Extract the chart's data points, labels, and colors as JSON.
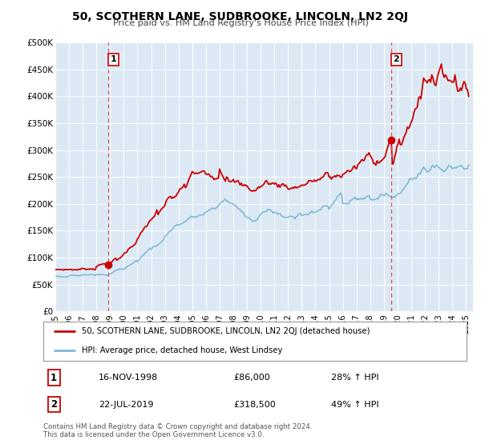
{
  "title": "50, SCOTHERN LANE, SUDBROOKE, LINCOLN, LN2 2QJ",
  "subtitle": "Price paid vs. HM Land Registry's House Price Index (HPI)",
  "ylim": [
    0,
    500000
  ],
  "xlim_start": 1995.0,
  "xlim_end": 2025.5,
  "plot_bg_color": "#dce9f5",
  "red_line_color": "#cc0000",
  "blue_line_color": "#7ab8d4",
  "marker1_date": 1998.88,
  "marker1_value": 86000,
  "marker2_date": 2019.54,
  "marker2_value": 318500,
  "vline_color": "#e05050",
  "legend_label_red": "50, SCOTHERN LANE, SUDBROOKE, LINCOLN, LN2 2QJ (detached house)",
  "legend_label_blue": "HPI: Average price, detached house, West Lindsey",
  "table_row1": [
    "1",
    "16-NOV-1998",
    "£86,000",
    "28% ↑ HPI"
  ],
  "table_row2": [
    "2",
    "22-JUL-2019",
    "£318,500",
    "49% ↑ HPI"
  ],
  "footnote": "Contains HM Land Registry data © Crown copyright and database right 2024.\nThis data is licensed under the Open Government Licence v3.0.",
  "ytick_labels": [
    "£0",
    "£50K",
    "£100K",
    "£150K",
    "£200K",
    "£250K",
    "£300K",
    "£350K",
    "£400K",
    "£450K",
    "£500K"
  ],
  "ytick_values": [
    0,
    50000,
    100000,
    150000,
    200000,
    250000,
    300000,
    350000,
    400000,
    450000,
    500000
  ],
  "xtick_years": [
    1995,
    1996,
    1997,
    1998,
    1999,
    2000,
    2001,
    2002,
    2003,
    2004,
    2005,
    2006,
    2007,
    2008,
    2009,
    2010,
    2011,
    2012,
    2013,
    2014,
    2015,
    2016,
    2017,
    2018,
    2019,
    2020,
    2021,
    2022,
    2023,
    2024,
    2025
  ]
}
